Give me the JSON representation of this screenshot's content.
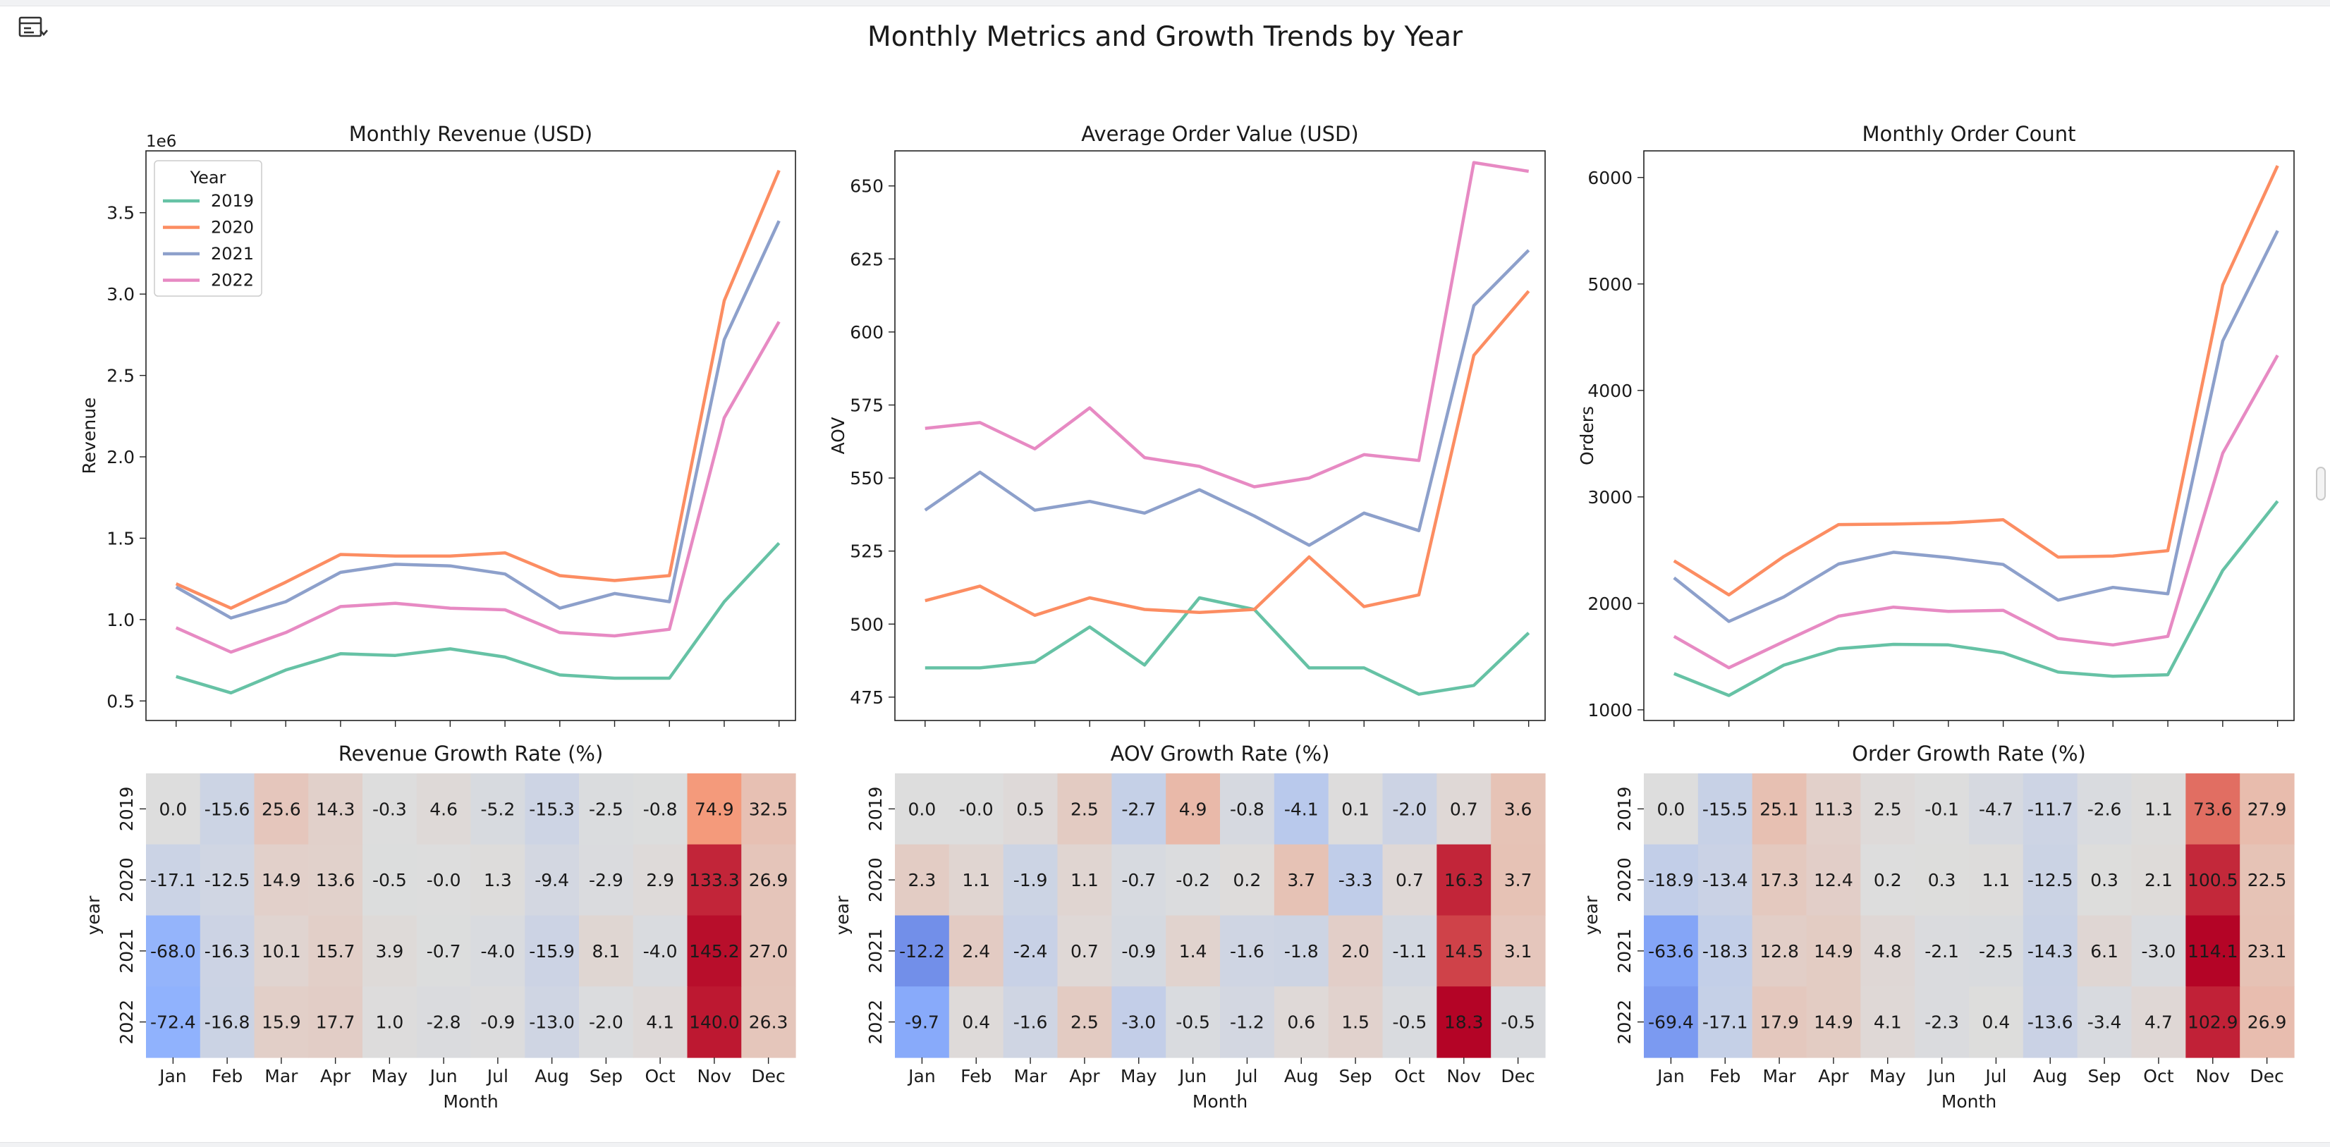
{
  "page": {
    "suptitle": "Monthly Metrics and Growth Trends by Year"
  },
  "colors": {
    "series": {
      "2019": "#66c2a5",
      "2020": "#fc8d62",
      "2021": "#8da0cb",
      "2022": "#e78ac3"
    },
    "heatmap_cmap": "coolwarm"
  },
  "icons": {
    "panel_toggle": "sidebar-toggle-icon"
  },
  "chart_data": [
    {
      "type": "line",
      "title": "Monthly Revenue (USD)",
      "xlabel": "",
      "ylabel": "Revenue",
      "offset_label": "1e6",
      "ylim": [
        0.38,
        3.88
      ],
      "yticks": [
        0.5,
        1.0,
        1.5,
        2.0,
        2.5,
        3.0,
        3.5
      ],
      "ytick_labels": [
        "0.5",
        "1.0",
        "1.5",
        "2.0",
        "2.5",
        "3.0",
        "3.5"
      ],
      "x": [
        1,
        2,
        3,
        4,
        5,
        6,
        7,
        8,
        9,
        10,
        11,
        12
      ],
      "legend": {
        "title": "Year",
        "location": "upper left"
      },
      "series": [
        {
          "name": "2019",
          "values": [
            0.65,
            0.55,
            0.69,
            0.79,
            0.78,
            0.82,
            0.77,
            0.66,
            0.64,
            0.64,
            1.11,
            1.47
          ]
        },
        {
          "name": "2020",
          "values": [
            1.22,
            1.07,
            1.23,
            1.4,
            1.39,
            1.39,
            1.41,
            1.27,
            1.24,
            1.27,
            2.96,
            3.76
          ]
        },
        {
          "name": "2021",
          "values": [
            1.2,
            1.01,
            1.11,
            1.29,
            1.34,
            1.33,
            1.28,
            1.07,
            1.16,
            1.11,
            2.72,
            3.45
          ]
        },
        {
          "name": "2022",
          "values": [
            0.95,
            0.8,
            0.92,
            1.08,
            1.1,
            1.07,
            1.06,
            0.92,
            0.9,
            0.94,
            2.24,
            2.83
          ]
        }
      ]
    },
    {
      "type": "line",
      "title": "Average Order Value (USD)",
      "xlabel": "",
      "ylabel": "AOV",
      "ylim": [
        467,
        662
      ],
      "yticks": [
        475,
        500,
        525,
        550,
        575,
        600,
        625,
        650
      ],
      "ytick_labels": [
        "475",
        "500",
        "525",
        "550",
        "575",
        "600",
        "625",
        "650"
      ],
      "x": [
        1,
        2,
        3,
        4,
        5,
        6,
        7,
        8,
        9,
        10,
        11,
        12
      ],
      "series": [
        {
          "name": "2019",
          "values": [
            485,
            485,
            487,
            499,
            486,
            509,
            505,
            485,
            485,
            476,
            479,
            497
          ]
        },
        {
          "name": "2020",
          "values": [
            508,
            513,
            503,
            509,
            505,
            504,
            505,
            523,
            506,
            510,
            592,
            614
          ]
        },
        {
          "name": "2021",
          "values": [
            539,
            552,
            539,
            542,
            538,
            546,
            537,
            527,
            538,
            532,
            609,
            628
          ]
        },
        {
          "name": "2022",
          "values": [
            567,
            569,
            560,
            574,
            557,
            554,
            547,
            550,
            558,
            556,
            658,
            655
          ]
        }
      ]
    },
    {
      "type": "line",
      "title": "Monthly Order Count",
      "xlabel": "",
      "ylabel": "Orders",
      "ylim": [
        900,
        6250
      ],
      "yticks": [
        1000,
        2000,
        3000,
        4000,
        5000,
        6000
      ],
      "ytick_labels": [
        "1000",
        "2000",
        "3000",
        "4000",
        "5000",
        "6000"
      ],
      "x": [
        1,
        2,
        3,
        4,
        5,
        6,
        7,
        8,
        9,
        10,
        11,
        12
      ],
      "series": [
        {
          "name": "2019",
          "values": [
            1340,
            1135,
            1420,
            1575,
            1615,
            1610,
            1535,
            1355,
            1315,
            1330,
            2310,
            2960
          ]
        },
        {
          "name": "2020",
          "values": [
            2400,
            2080,
            2440,
            2740,
            2745,
            2755,
            2785,
            2435,
            2445,
            2495,
            4990,
            6110
          ]
        },
        {
          "name": "2021",
          "values": [
            2240,
            1830,
            2060,
            2370,
            2480,
            2430,
            2365,
            2030,
            2150,
            2090,
            4465,
            5500
          ]
        },
        {
          "name": "2022",
          "values": [
            1690,
            1395,
            1640,
            1880,
            1965,
            1925,
            1935,
            1670,
            1610,
            1690,
            3410,
            4330
          ]
        }
      ]
    },
    {
      "type": "heatmap",
      "title": "Revenue Growth Rate (%)",
      "xlabel": "Month",
      "ylabel": "year",
      "categories": [
        "Jan",
        "Feb",
        "Mar",
        "Apr",
        "May",
        "Jun",
        "Jul",
        "Aug",
        "Sep",
        "Oct",
        "Nov",
        "Dec"
      ],
      "rows": [
        "2019",
        "2020",
        "2021",
        "2022"
      ],
      "values": [
        [
          0.0,
          -15.6,
          25.6,
          14.3,
          -0.3,
          4.6,
          -5.2,
          -15.3,
          -2.5,
          -0.8,
          74.9,
          32.5
        ],
        [
          -17.1,
          -12.5,
          14.9,
          13.6,
          -0.5,
          -0.0,
          1.3,
          -9.4,
          -2.9,
          2.9,
          133.3,
          26.9
        ],
        [
          -68.0,
          -16.3,
          10.1,
          15.7,
          3.9,
          -0.7,
          -4.0,
          -15.9,
          8.1,
          -4.0,
          145.2,
          27.0
        ],
        [
          -72.4,
          -16.8,
          15.9,
          17.7,
          1.0,
          -2.8,
          -0.9,
          -13.0,
          -2.0,
          4.1,
          140.0,
          26.3
        ]
      ],
      "labels": [
        [
          "0.0",
          "-15.6",
          "25.6",
          "14.3",
          "-0.3",
          "4.6",
          "-5.2",
          "-15.3",
          "-2.5",
          "-0.8",
          "74.9",
          "32.5"
        ],
        [
          "-17.1",
          "-12.5",
          "14.9",
          "13.6",
          "-0.5",
          "-0.0",
          "1.3",
          "-9.4",
          "-2.9",
          "2.9",
          "133.3",
          "26.9"
        ],
        [
          "-68.0",
          "-16.3",
          "10.1",
          "15.7",
          "3.9",
          "-0.7",
          "-4.0",
          "-15.9",
          "8.1",
          "-4.0",
          "145.2",
          "27.0"
        ],
        [
          "-72.4",
          "-16.8",
          "15.9",
          "17.7",
          "1.0",
          "-2.8",
          "-0.9",
          "-13.0",
          "-2.0",
          "4.1",
          "140.0",
          "26.3"
        ]
      ],
      "vmin": -150,
      "vmax": 150
    },
    {
      "type": "heatmap",
      "title": "AOV Growth Rate (%)",
      "xlabel": "Month",
      "ylabel": "year",
      "categories": [
        "Jan",
        "Feb",
        "Mar",
        "Apr",
        "May",
        "Jun",
        "Jul",
        "Aug",
        "Sep",
        "Oct",
        "Nov",
        "Dec"
      ],
      "rows": [
        "2019",
        "2020",
        "2021",
        "2022"
      ],
      "values": [
        [
          0.0,
          -0.0,
          0.5,
          2.5,
          -2.7,
          4.9,
          -0.8,
          -4.1,
          0.1,
          -2.0,
          0.7,
          3.6
        ],
        [
          2.3,
          1.1,
          -1.9,
          1.1,
          -0.7,
          -0.2,
          0.2,
          3.7,
          -3.3,
          0.7,
          16.3,
          3.7
        ],
        [
          -12.2,
          2.4,
          -2.4,
          0.7,
          -0.9,
          1.4,
          -1.6,
          -1.8,
          2.0,
          -1.1,
          14.5,
          3.1
        ],
        [
          -9.7,
          0.4,
          -1.6,
          2.5,
          -3.0,
          -0.5,
          -1.2,
          0.6,
          1.5,
          -0.5,
          18.3,
          -0.5
        ]
      ],
      "labels": [
        [
          "0.0",
          "-0.0",
          "0.5",
          "2.5",
          "-2.7",
          "4.9",
          "-0.8",
          "-4.1",
          "0.1",
          "-2.0",
          "0.7",
          "3.6"
        ],
        [
          "2.3",
          "1.1",
          "-1.9",
          "1.1",
          "-0.7",
          "-0.2",
          "0.2",
          "3.7",
          "-3.3",
          "0.7",
          "16.3",
          "3.7"
        ],
        [
          "-12.2",
          "2.4",
          "-2.4",
          "0.7",
          "-0.9",
          "1.4",
          "-1.6",
          "-1.8",
          "2.0",
          "-1.1",
          "14.5",
          "3.1"
        ],
        [
          "-9.7",
          "0.4",
          "-1.6",
          "2.5",
          "-3.0",
          "-0.5",
          "-1.2",
          "0.6",
          "1.5",
          "-0.5",
          "18.3",
          "-0.5"
        ]
      ],
      "vmin": -18.3,
      "vmax": 18.3
    },
    {
      "type": "heatmap",
      "title": "Order Growth Rate (%)",
      "xlabel": "Month",
      "ylabel": "year",
      "categories": [
        "Jan",
        "Feb",
        "Mar",
        "Apr",
        "May",
        "Jun",
        "Jul",
        "Aug",
        "Sep",
        "Oct",
        "Nov",
        "Dec"
      ],
      "rows": [
        "2019",
        "2020",
        "2021",
        "2022"
      ],
      "values": [
        [
          0.0,
          -15.5,
          25.1,
          11.3,
          2.5,
          -0.1,
          -4.7,
          -11.7,
          -2.6,
          1.1,
          73.6,
          27.9
        ],
        [
          -18.9,
          -13.4,
          17.3,
          12.4,
          0.2,
          0.3,
          1.1,
          -12.5,
          0.3,
          2.1,
          100.5,
          22.5
        ],
        [
          -63.6,
          -18.3,
          12.8,
          14.9,
          4.8,
          -2.1,
          -2.5,
          -14.3,
          6.1,
          -3.0,
          114.1,
          23.1
        ],
        [
          -69.4,
          -17.1,
          17.9,
          14.9,
          4.1,
          -2.3,
          0.4,
          -13.6,
          -3.4,
          4.7,
          102.9,
          26.9
        ]
      ],
      "labels": [
        [
          "0.0",
          "-15.5",
          "25.1",
          "11.3",
          "2.5",
          "-0.1",
          "-4.7",
          "-11.7",
          "-2.6",
          "1.1",
          "73.6",
          "27.9"
        ],
        [
          "-18.9",
          "-13.4",
          "17.3",
          "12.4",
          "0.2",
          "0.3",
          "1.1",
          "-12.5",
          "0.3",
          "2.1",
          "100.5",
          "22.5"
        ],
        [
          "-63.6",
          "-18.3",
          "12.8",
          "14.9",
          "4.8",
          "-2.1",
          "-2.5",
          "-14.3",
          "6.1",
          "-3.0",
          "114.1",
          "23.1"
        ],
        [
          "-69.4",
          "-17.1",
          "17.9",
          "14.9",
          "4.1",
          "-2.3",
          "0.4",
          "-13.6",
          "-3.4",
          "4.7",
          "102.9",
          "26.9"
        ]
      ],
      "vmin": -114.1,
      "vmax": 114.1
    }
  ]
}
